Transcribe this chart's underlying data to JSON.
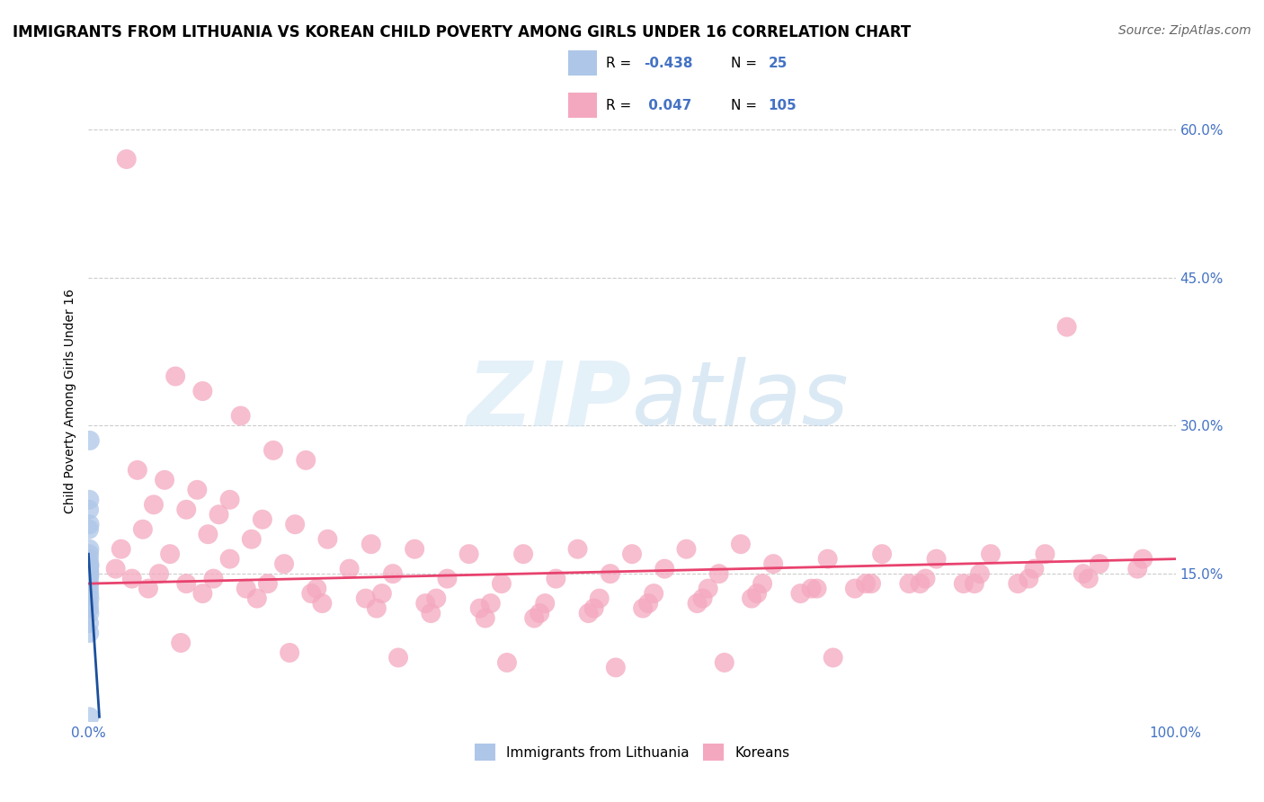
{
  "title": "IMMIGRANTS FROM LITHUANIA VS KOREAN CHILD POVERTY AMONG GIRLS UNDER 16 CORRELATION CHART",
  "source": "Source: ZipAtlas.com",
  "ylabel": "Child Poverty Among Girls Under 16",
  "xlim": [
    0,
    100
  ],
  "ylim": [
    0,
    65
  ],
  "y_ticks": [
    15,
    30,
    45,
    60
  ],
  "y_tick_labels": [
    "15.0%",
    "30.0%",
    "45.0%",
    "60.0%"
  ],
  "watermark_zip": "ZIP",
  "watermark_atlas": "atlas",
  "blue_color": "#aec6e8",
  "pink_color": "#f4a8bf",
  "blue_line_color": "#1a4f9c",
  "pink_line_color": "#e8426e",
  "grid_color": "#cccccc",
  "tick_color": "#4472c4",
  "title_fontsize": 12,
  "label_fontsize": 10,
  "tick_fontsize": 11,
  "source_fontsize": 10,
  "blue_scatter": [
    [
      0.12,
      28.5
    ],
    [
      0.08,
      22.5
    ],
    [
      0.06,
      21.5
    ],
    [
      0.1,
      20.0
    ],
    [
      0.05,
      19.5
    ],
    [
      0.08,
      17.5
    ],
    [
      0.06,
      17.0
    ],
    [
      0.04,
      16.5
    ],
    [
      0.07,
      16.0
    ],
    [
      0.09,
      15.8
    ],
    [
      0.05,
      15.5
    ],
    [
      0.07,
      15.2
    ],
    [
      0.06,
      15.0
    ],
    [
      0.08,
      14.8
    ],
    [
      0.04,
      14.5
    ],
    [
      0.06,
      14.0
    ],
    [
      0.05,
      13.5
    ],
    [
      0.07,
      13.0
    ],
    [
      0.09,
      12.5
    ],
    [
      0.04,
      12.0
    ],
    [
      0.06,
      11.5
    ],
    [
      0.08,
      11.0
    ],
    [
      0.05,
      10.0
    ],
    [
      0.07,
      9.0
    ],
    [
      0.09,
      0.5
    ]
  ],
  "pink_scatter": [
    [
      3.5,
      57.0
    ],
    [
      8.0,
      35.0
    ],
    [
      10.5,
      33.5
    ],
    [
      14.0,
      31.0
    ],
    [
      17.0,
      27.5
    ],
    [
      20.0,
      26.5
    ],
    [
      4.5,
      25.5
    ],
    [
      7.0,
      24.5
    ],
    [
      10.0,
      23.5
    ],
    [
      13.0,
      22.5
    ],
    [
      6.0,
      22.0
    ],
    [
      9.0,
      21.5
    ],
    [
      12.0,
      21.0
    ],
    [
      16.0,
      20.5
    ],
    [
      19.0,
      20.0
    ],
    [
      5.0,
      19.5
    ],
    [
      11.0,
      19.0
    ],
    [
      15.0,
      18.5
    ],
    [
      22.0,
      18.5
    ],
    [
      26.0,
      18.0
    ],
    [
      30.0,
      17.5
    ],
    [
      35.0,
      17.0
    ],
    [
      40.0,
      17.0
    ],
    [
      45.0,
      17.5
    ],
    [
      50.0,
      17.0
    ],
    [
      55.0,
      17.5
    ],
    [
      60.0,
      18.0
    ],
    [
      3.0,
      17.5
    ],
    [
      7.5,
      17.0
    ],
    [
      13.0,
      16.5
    ],
    [
      18.0,
      16.0
    ],
    [
      24.0,
      15.5
    ],
    [
      28.0,
      15.0
    ],
    [
      33.0,
      14.5
    ],
    [
      38.0,
      14.0
    ],
    [
      43.0,
      14.5
    ],
    [
      48.0,
      15.0
    ],
    [
      53.0,
      15.5
    ],
    [
      58.0,
      15.0
    ],
    [
      63.0,
      16.0
    ],
    [
      68.0,
      16.5
    ],
    [
      73.0,
      17.0
    ],
    [
      78.0,
      16.5
    ],
    [
      83.0,
      17.0
    ],
    [
      88.0,
      17.0
    ],
    [
      90.0,
      40.0
    ],
    [
      2.5,
      15.5
    ],
    [
      6.5,
      15.0
    ],
    [
      11.5,
      14.5
    ],
    [
      16.5,
      14.0
    ],
    [
      21.0,
      13.5
    ],
    [
      27.0,
      13.0
    ],
    [
      32.0,
      12.5
    ],
    [
      37.0,
      12.0
    ],
    [
      42.0,
      12.0
    ],
    [
      47.0,
      12.5
    ],
    [
      52.0,
      13.0
    ],
    [
      57.0,
      13.5
    ],
    [
      62.0,
      14.0
    ],
    [
      67.0,
      13.5
    ],
    [
      72.0,
      14.0
    ],
    [
      77.0,
      14.5
    ],
    [
      82.0,
      15.0
    ],
    [
      87.0,
      15.5
    ],
    [
      93.0,
      16.0
    ],
    [
      97.0,
      16.5
    ],
    [
      4.0,
      14.5
    ],
    [
      9.0,
      14.0
    ],
    [
      14.5,
      13.5
    ],
    [
      20.5,
      13.0
    ],
    [
      25.5,
      12.5
    ],
    [
      31.0,
      12.0
    ],
    [
      36.0,
      11.5
    ],
    [
      41.5,
      11.0
    ],
    [
      46.5,
      11.5
    ],
    [
      51.5,
      12.0
    ],
    [
      56.5,
      12.5
    ],
    [
      61.5,
      13.0
    ],
    [
      66.5,
      13.5
    ],
    [
      71.5,
      14.0
    ],
    [
      76.5,
      14.0
    ],
    [
      81.5,
      14.0
    ],
    [
      86.5,
      14.5
    ],
    [
      91.5,
      15.0
    ],
    [
      96.5,
      15.5
    ],
    [
      5.5,
      13.5
    ],
    [
      10.5,
      13.0
    ],
    [
      15.5,
      12.5
    ],
    [
      21.5,
      12.0
    ],
    [
      26.5,
      11.5
    ],
    [
      31.5,
      11.0
    ],
    [
      36.5,
      10.5
    ],
    [
      41.0,
      10.5
    ],
    [
      46.0,
      11.0
    ],
    [
      51.0,
      11.5
    ],
    [
      56.0,
      12.0
    ],
    [
      61.0,
      12.5
    ],
    [
      65.5,
      13.0
    ],
    [
      70.5,
      13.5
    ],
    [
      75.5,
      14.0
    ],
    [
      80.5,
      14.0
    ],
    [
      85.5,
      14.0
    ],
    [
      92.0,
      14.5
    ],
    [
      8.5,
      8.0
    ],
    [
      18.5,
      7.0
    ],
    [
      28.5,
      6.5
    ],
    [
      38.5,
      6.0
    ],
    [
      48.5,
      5.5
    ],
    [
      58.5,
      6.0
    ],
    [
      68.5,
      6.5
    ]
  ]
}
